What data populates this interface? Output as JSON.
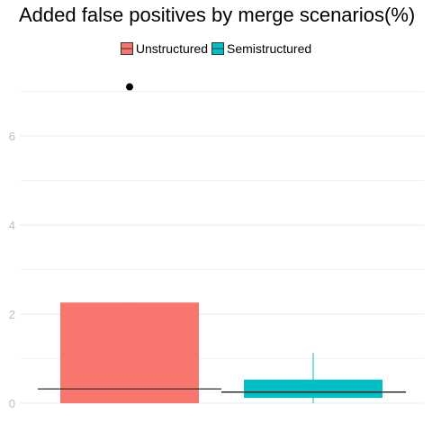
{
  "chart_data": {
    "type": "boxplot",
    "title": "Added false positives by merge scenarios(%)",
    "xlabel": "",
    "ylabel": "",
    "ylim": [
      0,
      7.1
    ],
    "y_ticks": [
      0,
      2,
      4,
      6
    ],
    "x_tick_labels": [],
    "grid": true,
    "legend_position": "top",
    "legend": [
      "Unstructured",
      "Semistructured"
    ],
    "series": [
      {
        "name": "Unstructured",
        "color": "#F8766D",
        "min": 0.0,
        "q1": 0.0,
        "median": 0.32,
        "q3": 2.26,
        "max": 2.26,
        "outliers": [
          7.1
        ]
      },
      {
        "name": "Semistructured",
        "color": "#00BFC4",
        "min": 0.0,
        "q1": 0.12,
        "median": 0.25,
        "q3": 0.53,
        "max": 1.13,
        "outliers": []
      }
    ]
  }
}
